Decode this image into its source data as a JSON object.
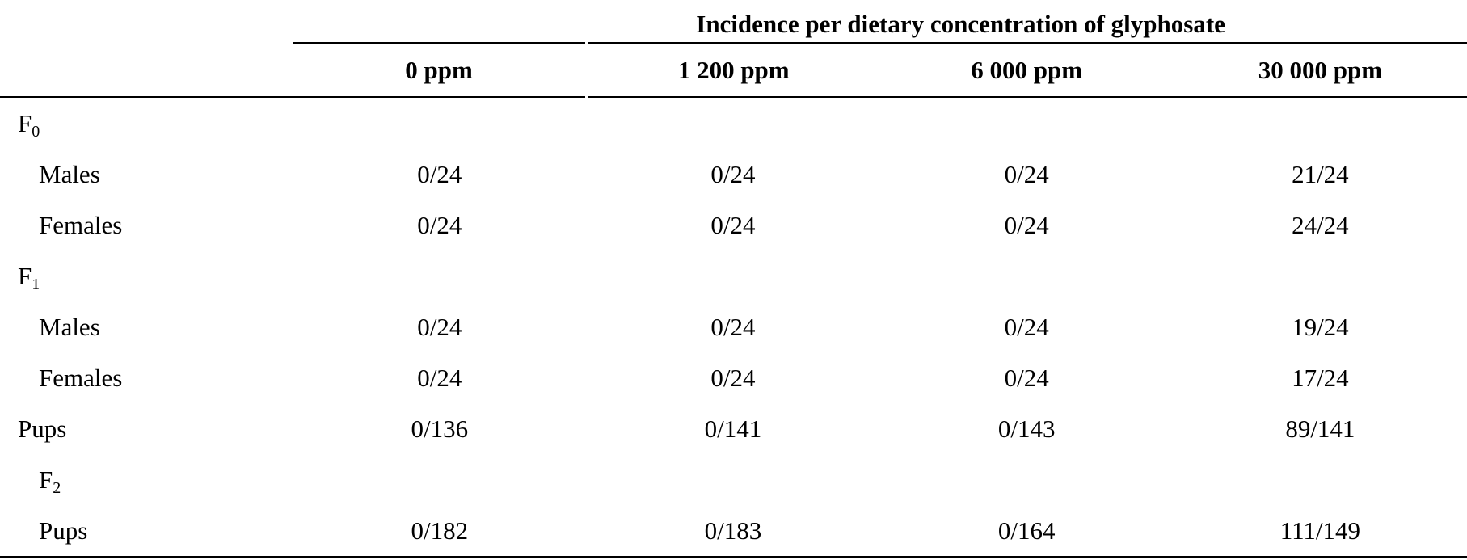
{
  "table": {
    "spanning_header": "Incidence per dietary concentration of glyphosate",
    "columns": [
      "0 ppm",
      "1 200 ppm",
      "6 000 ppm",
      "30 000 ppm"
    ],
    "rows": [
      {
        "label": "F",
        "sub": "0",
        "values": [
          "",
          "",
          "",
          ""
        ]
      },
      {
        "label": "Males",
        "sub": "",
        "values": [
          "0/24",
          "0/24",
          "0/24",
          "21/24"
        ]
      },
      {
        "label": "Females",
        "sub": "",
        "values": [
          "0/24",
          "0/24",
          "0/24",
          "24/24"
        ]
      },
      {
        "label": "F",
        "sub": "1",
        "values": [
          "",
          "",
          "",
          ""
        ]
      },
      {
        "label": "Males",
        "sub": "",
        "values": [
          "0/24",
          "0/24",
          "0/24",
          "19/24"
        ]
      },
      {
        "label": "Females",
        "sub": "",
        "values": [
          "0/24",
          "0/24",
          "0/24",
          "17/24"
        ]
      },
      {
        "label": "Pups",
        "sub": "",
        "values": [
          "0/136",
          "0/141",
          "0/143",
          "89/141"
        ]
      },
      {
        "label": "F",
        "sub": "2",
        "values": [
          "",
          "",
          "",
          ""
        ]
      },
      {
        "label": "Pups",
        "sub": "",
        "values": [
          "0/182",
          "0/183",
          "0/164",
          "111/149"
        ]
      }
    ]
  }
}
